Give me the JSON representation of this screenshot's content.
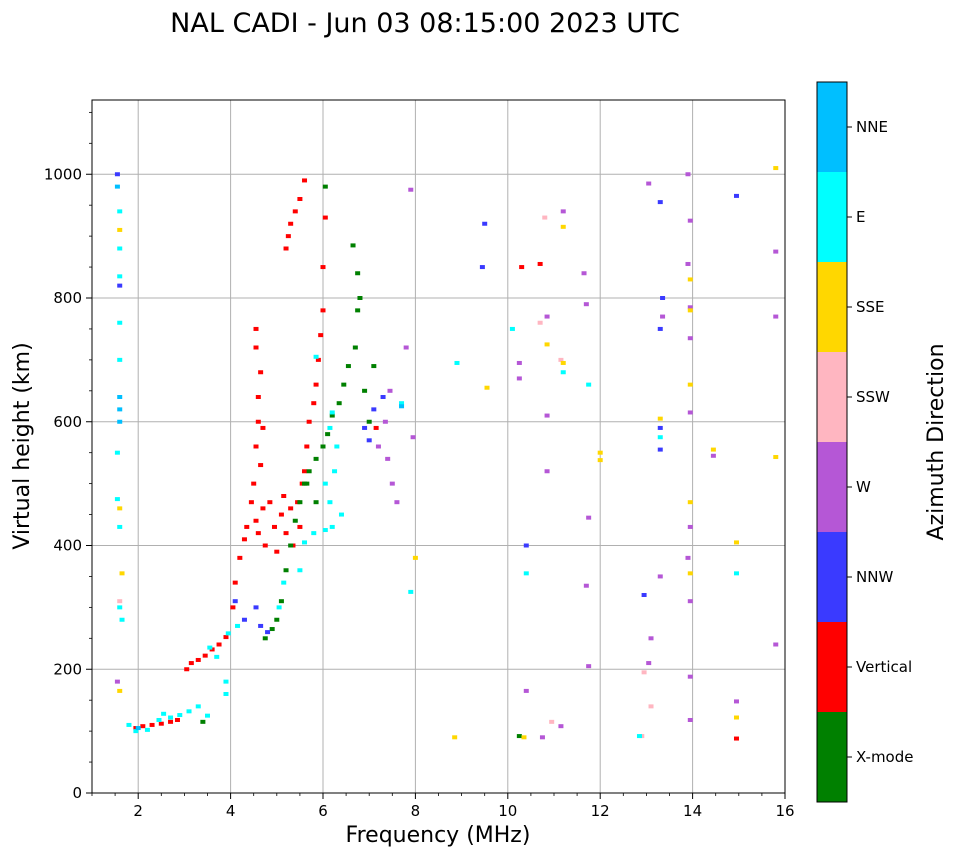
{
  "chart_data": {
    "type": "scatter",
    "title": "NAL CADI - Jun 03 08:15:00 2023 UTC",
    "xlabel": "Frequency (MHz)",
    "ylabel": "Virtual height (km)",
    "xlim": [
      1,
      16
    ],
    "ylim": [
      0,
      1120
    ],
    "xticks": [
      2,
      4,
      6,
      8,
      10,
      12,
      14,
      16
    ],
    "yticks": [
      0,
      200,
      400,
      600,
      800,
      1000
    ],
    "grid": true,
    "colorbar": {
      "label": "Azimuth Direction",
      "categories": [
        {
          "name": "X-mode",
          "color": "#008000"
        },
        {
          "name": "Vertical",
          "color": "#ff0000"
        },
        {
          "name": "NNW",
          "color": "#3a3aff"
        },
        {
          "name": "W",
          "color": "#b557d6"
        },
        {
          "name": "SSW",
          "color": "#ffb6c1"
        },
        {
          "name": "SSE",
          "color": "#ffd700"
        },
        {
          "name": "E",
          "color": "#00ffff"
        },
        {
          "name": "NNE",
          "color": "#00bfff"
        }
      ]
    },
    "series": [
      {
        "name": "Vertical",
        "points": [
          [
            1.95,
            105
          ],
          [
            2.1,
            108
          ],
          [
            2.3,
            110
          ],
          [
            2.5,
            112
          ],
          [
            2.7,
            115
          ],
          [
            2.85,
            118
          ],
          [
            3.05,
            200
          ],
          [
            3.15,
            210
          ],
          [
            3.3,
            215
          ],
          [
            3.45,
            222
          ],
          [
            3.6,
            232
          ],
          [
            3.75,
            240
          ],
          [
            3.9,
            252
          ],
          [
            4.05,
            300
          ],
          [
            4.1,
            340
          ],
          [
            4.2,
            380
          ],
          [
            4.3,
            410
          ],
          [
            4.35,
            430
          ],
          [
            4.45,
            470
          ],
          [
            4.5,
            500
          ],
          [
            4.55,
            440
          ],
          [
            4.6,
            420
          ],
          [
            4.65,
            530
          ],
          [
            4.7,
            460
          ],
          [
            4.75,
            400
          ],
          [
            4.85,
            470
          ],
          [
            4.95,
            430
          ],
          [
            5.0,
            390
          ],
          [
            5.1,
            450
          ],
          [
            5.15,
            480
          ],
          [
            5.2,
            420
          ],
          [
            5.3,
            460
          ],
          [
            5.35,
            400
          ],
          [
            5.45,
            470
          ],
          [
            5.5,
            430
          ],
          [
            5.55,
            500
          ],
          [
            5.6,
            520
          ],
          [
            5.65,
            560
          ],
          [
            5.7,
            600
          ],
          [
            5.8,
            630
          ],
          [
            5.85,
            660
          ],
          [
            5.9,
            700
          ],
          [
            5.95,
            740
          ],
          [
            6.0,
            780
          ],
          [
            6.0,
            850
          ],
          [
            6.05,
            930
          ],
          [
            4.55,
            560
          ],
          [
            4.6,
            600
          ],
          [
            4.6,
            640
          ],
          [
            4.65,
            680
          ],
          [
            4.55,
            720
          ],
          [
            4.55,
            750
          ],
          [
            4.7,
            590
          ],
          [
            5.2,
            880
          ],
          [
            5.25,
            900
          ],
          [
            5.3,
            920
          ],
          [
            5.4,
            940
          ],
          [
            5.5,
            960
          ],
          [
            5.6,
            990
          ],
          [
            7.15,
            590
          ],
          [
            10.3,
            850
          ],
          [
            10.7,
            855
          ],
          [
            14.95,
            88
          ]
        ]
      },
      {
        "name": "X-mode",
        "points": [
          [
            3.4,
            115
          ],
          [
            4.75,
            250
          ],
          [
            4.9,
            265
          ],
          [
            5.0,
            280
          ],
          [
            5.1,
            310
          ],
          [
            5.2,
            360
          ],
          [
            5.3,
            400
          ],
          [
            5.4,
            440
          ],
          [
            5.5,
            470
          ],
          [
            5.6,
            500
          ],
          [
            5.7,
            520
          ],
          [
            5.85,
            540
          ],
          [
            6.0,
            560
          ],
          [
            6.1,
            580
          ],
          [
            6.2,
            610
          ],
          [
            6.35,
            630
          ],
          [
            6.45,
            660
          ],
          [
            6.55,
            690
          ],
          [
            6.7,
            720
          ],
          [
            6.75,
            780
          ],
          [
            6.8,
            800
          ],
          [
            6.65,
            885
          ],
          [
            6.75,
            840
          ],
          [
            6.9,
            650
          ],
          [
            7.0,
            600
          ],
          [
            7.1,
            690
          ],
          [
            5.65,
            500
          ],
          [
            5.85,
            470
          ],
          [
            6.05,
            980
          ],
          [
            10.25,
            92
          ]
        ]
      },
      {
        "name": "NNW",
        "points": [
          [
            1.55,
            1000
          ],
          [
            1.6,
            820
          ],
          [
            4.1,
            310
          ],
          [
            4.3,
            280
          ],
          [
            4.55,
            300
          ],
          [
            4.65,
            270
          ],
          [
            4.8,
            260
          ],
          [
            6.9,
            590
          ],
          [
            7.1,
            620
          ],
          [
            7.3,
            640
          ],
          [
            7.0,
            570
          ],
          [
            9.5,
            920
          ],
          [
            9.45,
            850
          ],
          [
            10.4,
            400
          ],
          [
            12.95,
            320
          ],
          [
            13.3,
            955
          ],
          [
            13.35,
            800
          ],
          [
            13.3,
            750
          ],
          [
            13.3,
            555
          ],
          [
            13.3,
            590
          ],
          [
            14.95,
            965
          ]
        ]
      },
      {
        "name": "W",
        "points": [
          [
            1.55,
            180
          ],
          [
            7.2,
            560
          ],
          [
            7.4,
            540
          ],
          [
            7.5,
            500
          ],
          [
            7.6,
            470
          ],
          [
            7.35,
            600
          ],
          [
            7.45,
            650
          ],
          [
            7.8,
            720
          ],
          [
            10.25,
            695
          ],
          [
            10.25,
            670
          ],
          [
            10.85,
            770
          ],
          [
            10.85,
            610
          ],
          [
            10.85,
            520
          ],
          [
            11.2,
            940
          ],
          [
            11.65,
            840
          ],
          [
            11.7,
            790
          ],
          [
            11.75,
            445
          ],
          [
            11.7,
            335
          ],
          [
            11.75,
            205
          ],
          [
            10.4,
            165
          ],
          [
            11.15,
            108
          ],
          [
            10.75,
            90
          ],
          [
            13.05,
            985
          ],
          [
            13.1,
            250
          ],
          [
            13.05,
            210
          ],
          [
            13.3,
            350
          ],
          [
            13.35,
            770
          ],
          [
            13.9,
            1000
          ],
          [
            13.95,
            925
          ],
          [
            13.9,
            855
          ],
          [
            13.95,
            785
          ],
          [
            13.95,
            735
          ],
          [
            13.95,
            615
          ],
          [
            13.95,
            430
          ],
          [
            13.9,
            380
          ],
          [
            13.95,
            310
          ],
          [
            13.95,
            188
          ],
          [
            13.95,
            118
          ],
          [
            14.45,
            545
          ],
          [
            14.95,
            148
          ],
          [
            15.8,
            875
          ],
          [
            15.8,
            770
          ],
          [
            15.8,
            240
          ],
          [
            7.9,
            975
          ],
          [
            7.95,
            575
          ]
        ]
      },
      {
        "name": "SSW",
        "points": [
          [
            1.6,
            310
          ],
          [
            10.8,
            930
          ],
          [
            10.95,
            115
          ],
          [
            12.9,
            92
          ],
          [
            12.95,
            195
          ],
          [
            13.1,
            140
          ],
          [
            11.15,
            700
          ],
          [
            10.7,
            760
          ]
        ]
      },
      {
        "name": "SSE",
        "points": [
          [
            1.6,
            460
          ],
          [
            1.65,
            355
          ],
          [
            1.6,
            910
          ],
          [
            1.6,
            165
          ],
          [
            8.0,
            380
          ],
          [
            8.85,
            90
          ],
          [
            9.55,
            655
          ],
          [
            10.85,
            725
          ],
          [
            11.2,
            695
          ],
          [
            11.2,
            915
          ],
          [
            12.0,
            550
          ],
          [
            12.0,
            538
          ],
          [
            13.3,
            605
          ],
          [
            13.95,
            830
          ],
          [
            13.95,
            780
          ],
          [
            13.95,
            660
          ],
          [
            13.95,
            470
          ],
          [
            13.95,
            355
          ],
          [
            14.45,
            555
          ],
          [
            14.95,
            405
          ],
          [
            14.95,
            122
          ],
          [
            15.8,
            1010
          ],
          [
            15.8,
            543
          ],
          [
            10.35,
            90
          ]
        ]
      },
      {
        "name": "E",
        "points": [
          [
            1.6,
            940
          ],
          [
            1.6,
            880
          ],
          [
            1.6,
            835
          ],
          [
            1.6,
            760
          ],
          [
            1.6,
            700
          ],
          [
            1.55,
            550
          ],
          [
            1.55,
            475
          ],
          [
            1.6,
            430
          ],
          [
            1.6,
            300
          ],
          [
            1.65,
            280
          ],
          [
            1.8,
            110
          ],
          [
            1.95,
            100
          ],
          [
            2.2,
            102
          ],
          [
            2.45,
            118
          ],
          [
            2.55,
            128
          ],
          [
            2.7,
            122
          ],
          [
            2.9,
            126
          ],
          [
            3.1,
            132
          ],
          [
            3.3,
            140
          ],
          [
            3.5,
            125
          ],
          [
            3.9,
            160
          ],
          [
            3.9,
            180
          ],
          [
            3.7,
            220
          ],
          [
            3.55,
            235
          ],
          [
            3.95,
            258
          ],
          [
            4.15,
            270
          ],
          [
            5.05,
            300
          ],
          [
            5.15,
            340
          ],
          [
            5.5,
            360
          ],
          [
            5.6,
            405
          ],
          [
            5.8,
            420
          ],
          [
            6.05,
            425
          ],
          [
            6.2,
            430
          ],
          [
            6.4,
            450
          ],
          [
            6.15,
            470
          ],
          [
            6.05,
            500
          ],
          [
            6.25,
            520
          ],
          [
            6.3,
            560
          ],
          [
            6.15,
            590
          ],
          [
            6.2,
            615
          ],
          [
            5.85,
            705
          ],
          [
            7.9,
            325
          ],
          [
            8.9,
            695
          ],
          [
            10.1,
            750
          ],
          [
            10.4,
            355
          ],
          [
            11.2,
            680
          ],
          [
            11.75,
            660
          ],
          [
            12.85,
            92
          ],
          [
            13.3,
            575
          ],
          [
            14.95,
            355
          ],
          [
            7.7,
            630
          ]
        ]
      },
      {
        "name": "NNE",
        "points": [
          [
            1.6,
            620
          ],
          [
            1.6,
            640
          ],
          [
            1.55,
            980
          ],
          [
            1.6,
            600
          ],
          [
            2.0,
            105
          ],
          [
            7.7,
            625
          ]
        ]
      }
    ]
  }
}
